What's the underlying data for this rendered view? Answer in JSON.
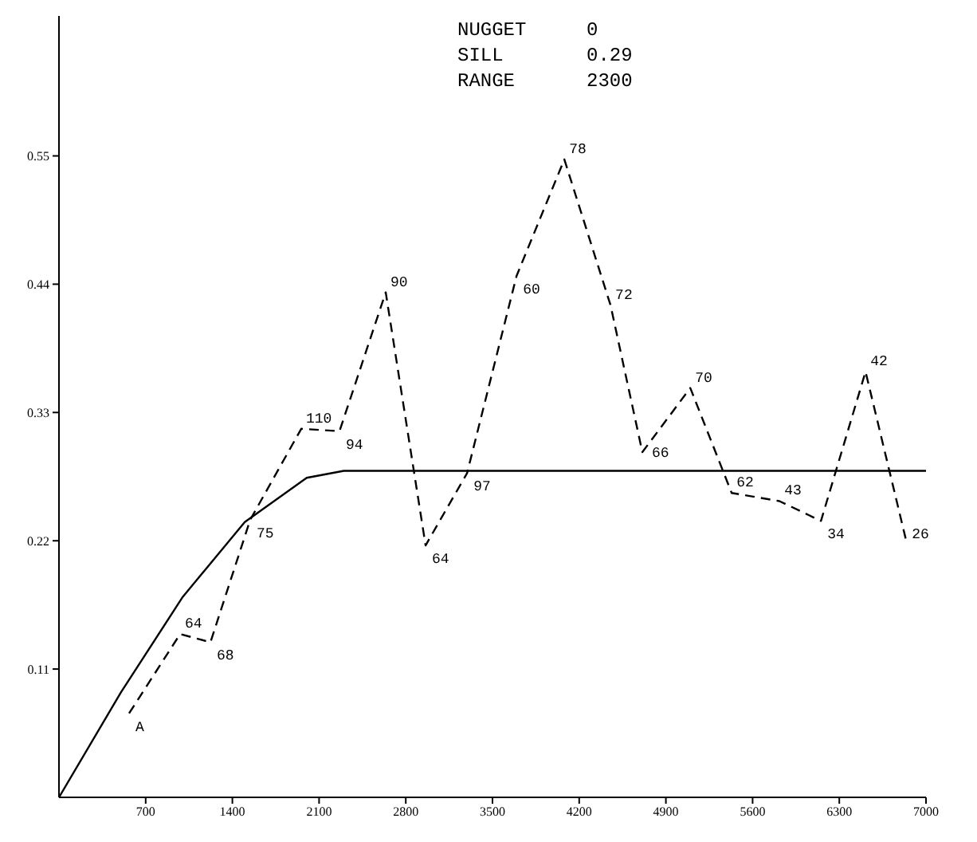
{
  "chart_data": {
    "type": "line",
    "annotations": [
      "NUGGET 0",
      "SILL 0.29",
      "RANGE 2300",
      {
        "text": "A",
        "x": 566,
        "y": 0.072
      },
      {
        "text": "64",
        "x": 978,
        "y": 0.14
      },
      {
        "text": "68",
        "x": 1223,
        "y": 0.133
      },
      {
        "text": "75",
        "x": 1544,
        "y": 0.238
      },
      {
        "text": "110",
        "x": 1956,
        "y": 0.316
      },
      {
        "text": "94",
        "x": 2265,
        "y": 0.314
      },
      {
        "text": "90",
        "x": 2638,
        "y": 0.433
      },
      {
        "text": "64",
        "x": 2960,
        "y": 0.216
      },
      {
        "text": "97",
        "x": 3295,
        "y": 0.278
      },
      {
        "text": "60",
        "x": 3694,
        "y": 0.447
      },
      {
        "text": "78",
        "x": 4080,
        "y": 0.547
      },
      {
        "text": "72",
        "x": 4453,
        "y": 0.422
      },
      {
        "text": "66",
        "x": 4710,
        "y": 0.296
      },
      {
        "text": "70",
        "x": 5097,
        "y": 0.351
      },
      {
        "text": "62",
        "x": 5431,
        "y": 0.261
      },
      {
        "text": "43",
        "x": 5817,
        "y": 0.254
      },
      {
        "text": "34",
        "x": 6152,
        "y": 0.237
      },
      {
        "text": "42",
        "x": 6512,
        "y": 0.365
      },
      {
        "text": "26",
        "x": 6847,
        "y": 0.217
      }
    ],
    "xlim": [
      0,
      7000
    ],
    "ylim": [
      0,
      0.67
    ],
    "xticks": [
      700,
      1400,
      2100,
      2800,
      3500,
      4200,
      4900,
      5600,
      6300,
      7000
    ],
    "yticks": [
      0.11,
      0.22,
      0.33,
      0.44,
      0.55
    ],
    "grid": false,
    "marker": "none",
    "series": [
      {
        "color": "#000000",
        "line_style": "dashed",
        "x": [
          566,
          978,
          1223,
          1544,
          1956,
          2265,
          2638,
          2960,
          3295,
          3694,
          4080,
          4453,
          4710,
          5097,
          5431,
          5817,
          6152,
          6512,
          6847
        ],
        "values": [
          0.072,
          0.14,
          0.133,
          0.238,
          0.316,
          0.314,
          0.433,
          0.216,
          0.278,
          0.447,
          0.547,
          0.422,
          0.296,
          0.351,
          0.261,
          0.254,
          0.237,
          0.365,
          0.217
        ]
      },
      {
        "color": "#000000",
        "line_style": "solid",
        "x": [
          0,
          500,
          1000,
          1500,
          2000,
          2300,
          7000
        ],
        "values": [
          0,
          0.09,
          0.172,
          0.236,
          0.274,
          0.28,
          0.28
        ]
      }
    ]
  }
}
